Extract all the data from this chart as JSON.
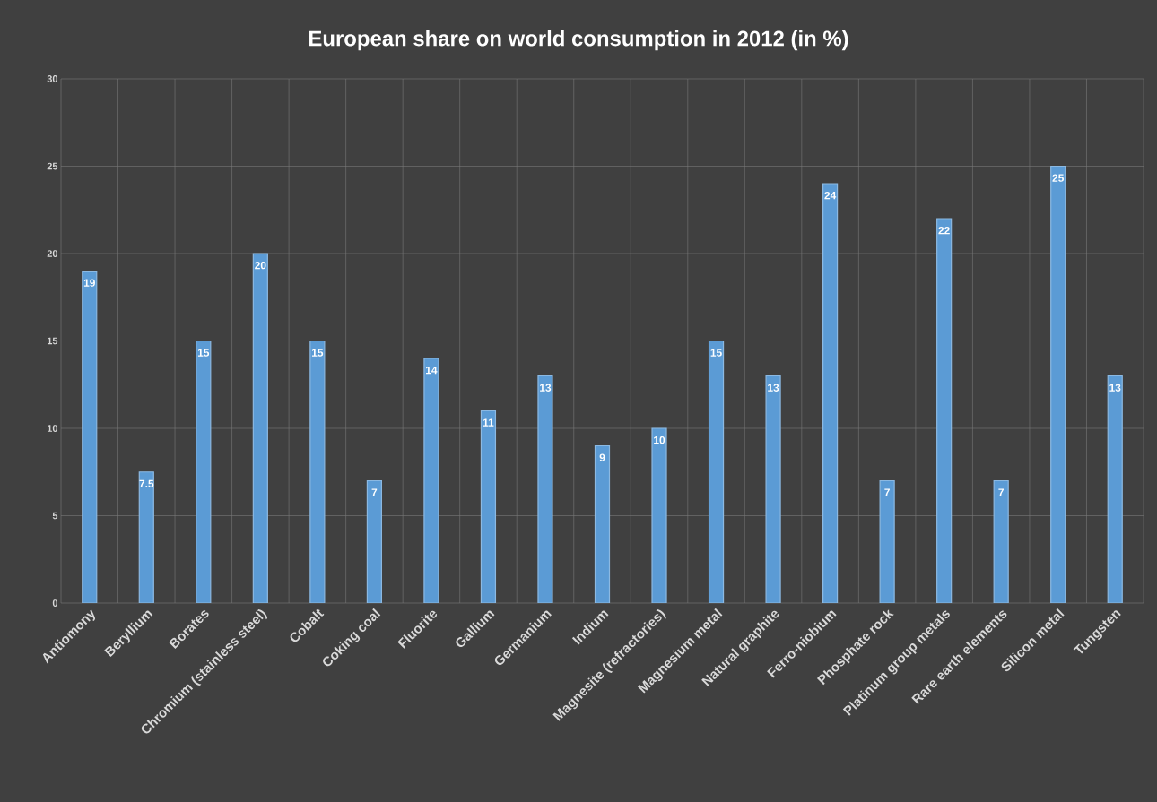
{
  "chart_data": {
    "type": "bar",
    "title": "European share on world consumption in 2012 (in %)",
    "categories": [
      "Antiomony",
      "Beryllium",
      "Borates",
      "Chromium (stainless steel)",
      "Cobalt",
      "Coking coal",
      "Fluorite",
      "Gallium",
      "Germanium",
      "Indium",
      "Magnesite (refractories)",
      "Magnesium metal",
      "Natural graphite",
      "Ferro-niobium",
      "Phosphate rock",
      "Platinum group metals",
      "Rare earth elements",
      "Silicon metal",
      "Tungsten"
    ],
    "values": [
      19,
      7.5,
      15,
      20,
      15,
      7,
      14,
      11,
      13,
      9,
      10,
      15,
      13,
      24,
      7,
      22,
      7,
      25,
      13
    ],
    "color": "#5b9bd5",
    "ylim": [
      0,
      30
    ],
    "yticks": [
      0,
      5,
      10,
      15,
      20,
      25,
      30
    ],
    "grid": true,
    "data_labels": true
  }
}
